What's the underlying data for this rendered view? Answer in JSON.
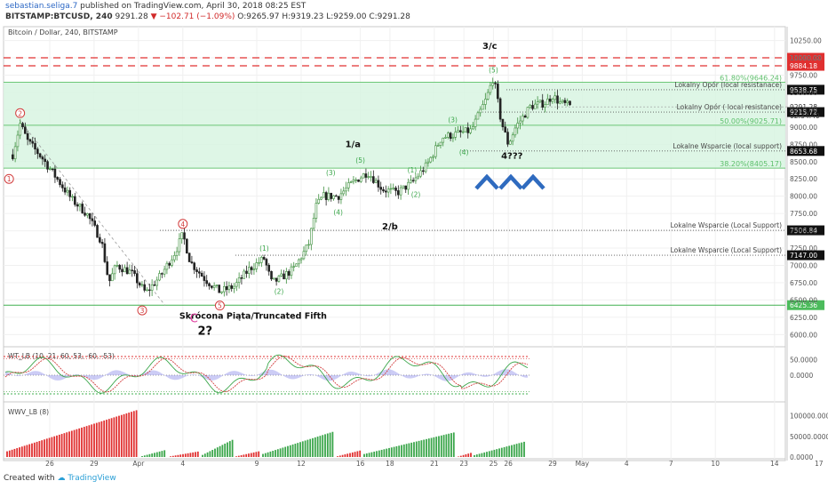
{
  "header": {
    "user": "sebastian.seliga.7",
    "published": "published on TradingView.com, April 30, 2018 08:25 EST",
    "symbol": "BITSTAMP:BTCUSD, 240",
    "last": "9291.28",
    "change": "−102.71 (−1.09%)",
    "ohlc": "O:9265.97  H:9319.23  L:9259.00  C:9291.28"
  },
  "footer": {
    "created_with": "Created with",
    "brand": "TradingView"
  },
  "chart_data": {
    "type": "candlestick",
    "title": "Bitcoin / Dollar, 240, BITSTAMP",
    "ylim": [
      5850,
      10450
    ],
    "y_ticks": [
      "10250.00",
      "10000.00",
      "9750.00",
      "9500.00",
      "9250.00",
      "9000.00",
      "8750.00",
      "8500.00",
      "8250.00",
      "8000.00",
      "7750.00",
      "7500.00",
      "7250.00",
      "7000.00",
      "6750.00",
      "6500.00",
      "6250.00",
      "6000.00"
    ],
    "x_ticks": [
      "26",
      "29",
      "Apr",
      "4",
      "9",
      "12",
      "16",
      "18",
      "21",
      "23",
      "25",
      "26",
      "29",
      "May",
      "4",
      "7",
      "10",
      "14",
      "17"
    ],
    "price_path": [
      {
        "date": "2018-03-23 12:00",
        "price": 8600
      },
      {
        "date": "2018-03-24 00:00",
        "price": 9050
      },
      {
        "date": "2018-03-24 12:00",
        "price": 8800
      },
      {
        "date": "2018-03-25 12:00",
        "price": 8550
      },
      {
        "date": "2018-03-26 12:00",
        "price": 8250
      },
      {
        "date": "2018-03-27 12:00",
        "price": 7950
      },
      {
        "date": "2018-03-28 12:00",
        "price": 7750
      },
      {
        "date": "2018-03-29 12:00",
        "price": 7350
      },
      {
        "date": "2018-03-30 00:00",
        "price": 6750
      },
      {
        "date": "2018-03-30 12:00",
        "price": 7000
      },
      {
        "date": "2018-03-31 12:00",
        "price": 6900
      },
      {
        "date": "2018-04-01 12:00",
        "price": 6600
      },
      {
        "date": "2018-04-02 12:00",
        "price": 6850
      },
      {
        "date": "2018-04-03 12:00",
        "price": 7200
      },
      {
        "date": "2018-04-04 00:00",
        "price": 7450
      },
      {
        "date": "2018-04-04 12:00",
        "price": 7050
      },
      {
        "date": "2018-04-05 12:00",
        "price": 6800
      },
      {
        "date": "2018-04-06 12:00",
        "price": 6620
      },
      {
        "date": "2018-04-07 12:00",
        "price": 6700
      },
      {
        "date": "2018-04-08 12:00",
        "price": 6950
      },
      {
        "date": "2018-04-09 12:00",
        "price": 7100
      },
      {
        "date": "2018-04-10 00:00",
        "price": 6750
      },
      {
        "date": "2018-04-10 12:00",
        "price": 6800
      },
      {
        "date": "2018-04-11 12:00",
        "price": 6950
      },
      {
        "date": "2018-04-12 12:00",
        "price": 7300
      },
      {
        "date": "2018-04-13 00:00",
        "price": 7850
      },
      {
        "date": "2018-04-13 12:00",
        "price": 8000
      },
      {
        "date": "2018-04-14 12:00",
        "price": 8000
      },
      {
        "date": "2018-04-15 12:00",
        "price": 8200
      },
      {
        "date": "2018-04-16 12:00",
        "price": 8350
      },
      {
        "date": "2018-04-17 12:00",
        "price": 8100
      },
      {
        "date": "2018-04-18 12:00",
        "price": 8050
      },
      {
        "date": "2018-04-19 12:00",
        "price": 8200
      },
      {
        "date": "2018-04-20 12:00",
        "price": 8450
      },
      {
        "date": "2018-04-21 12:00",
        "price": 8850
      },
      {
        "date": "2018-04-22 12:00",
        "price": 8900
      },
      {
        "date": "2018-04-23 12:00",
        "price": 8950
      },
      {
        "date": "2018-04-24 12:00",
        "price": 9400
      },
      {
        "date": "2018-04-25 00:00",
        "price": 9720
      },
      {
        "date": "2018-04-25 12:00",
        "price": 9100
      },
      {
        "date": "2018-04-26 00:00",
        "price": 8750
      },
      {
        "date": "2018-04-26 12:00",
        "price": 9000
      },
      {
        "date": "2018-04-27 12:00",
        "price": 9300
      },
      {
        "date": "2018-04-28 12:00",
        "price": 9350
      },
      {
        "date": "2018-04-29 00:00",
        "price": 9450
      },
      {
        "date": "2018-04-29 12:00",
        "price": 9350
      },
      {
        "date": "2018-04-30 08:00",
        "price": 9291
      }
    ],
    "levels": [
      {
        "price": 10000.0,
        "label": "",
        "tag": "10000.00",
        "style": "red-dashed"
      },
      {
        "price": 9884.18,
        "label": "",
        "tag": "9884.18",
        "style": "red-dashed"
      },
      {
        "price": 9538.75,
        "label": "Lokalny Opór (local resistanace)",
        "tag": "9538.75",
        "style": "dotted"
      },
      {
        "price": 9215.72,
        "label": "Lokalny Opór ( local resistance)",
        "tag": "9215.72",
        "style": "dotted"
      },
      {
        "price": 8653.68,
        "label": "Lokalne Wsparcie (local support)",
        "tag": "8653.68",
        "style": "dotted"
      },
      {
        "price": 7506.84,
        "label": "Lokalne Wsparcie (Local Support)",
        "tag": "7506.84",
        "style": "dotted"
      },
      {
        "price": 7147.0,
        "label": "Lokalne Wsparcie (Local Support)",
        "tag": "7147.00",
        "style": "dotted"
      },
      {
        "price": 6425.36,
        "label": "",
        "tag": "6425.36",
        "style": "green-solid"
      }
    ],
    "fib_levels": [
      {
        "price": 9646.24,
        "label": "61.80%(9646.24)"
      },
      {
        "price": 9025.71,
        "label": "50.00%(9025.71)"
      },
      {
        "price": 8405.17,
        "label": "38.20%(8405.17)"
      }
    ],
    "last_price_tag": "9291.28",
    "countdown_tag": "02:34:40",
    "waves": [
      {
        "label": "1",
        "date": "2018-03-23 06:00",
        "price": 8250,
        "color": "red"
      },
      {
        "label": "2",
        "date": "2018-03-24 00:00",
        "price": 9200,
        "color": "red"
      },
      {
        "label": "3",
        "date": "2018-04-01 06:00",
        "price": 6350,
        "color": "red"
      },
      {
        "label": "4",
        "date": "2018-04-04 00:00",
        "price": 7600,
        "color": "red"
      },
      {
        "label": "5",
        "date": "2018-04-06 12:00",
        "price": 6420,
        "color": "red"
      },
      {
        "label": "(1)",
        "date": "2018-04-09 12:00",
        "price": 7250,
        "color": "green"
      },
      {
        "label": "(2)",
        "date": "2018-04-10 12:00",
        "price": 6630,
        "color": "green"
      },
      {
        "label": "(3)",
        "date": "2018-04-14 00:00",
        "price": 8340,
        "color": "green"
      },
      {
        "label": "(4)",
        "date": "2018-04-14 12:00",
        "price": 7770,
        "color": "green"
      },
      {
        "label": "(5)",
        "date": "2018-04-16 00:00",
        "price": 8520,
        "color": "green"
      },
      {
        "label": "(1)",
        "date": "2018-04-19 12:00",
        "price": 8380,
        "color": "green"
      },
      {
        "label": "(2)",
        "date": "2018-04-19 18:00",
        "price": 8030,
        "color": "green"
      },
      {
        "label": "(3)",
        "date": "2018-04-22 06:00",
        "price": 9110,
        "color": "green"
      },
      {
        "label": "(4)",
        "date": "2018-04-23 00:00",
        "price": 8640,
        "color": "green"
      },
      {
        "label": "(5)",
        "date": "2018-04-25 00:00",
        "price": 9830,
        "color": "green"
      }
    ],
    "annotations": [
      {
        "text": "1/a",
        "date": "2018-04-15 12:00",
        "price": 8710
      },
      {
        "text": "2/b",
        "date": "2018-04-18 00:00",
        "price": 7520
      },
      {
        "text": "3/c",
        "date": "2018-04-24 18:00",
        "price": 10130
      },
      {
        "text": "4???",
        "date": "2018-04-26 06:00",
        "price": 8540
      },
      {
        "text": "Skrócona Piąta/Truncated Fifth",
        "date": "2018-04-08 18:00",
        "price": 6230
      },
      {
        "text": "2?",
        "date": "2018-04-05 12:00",
        "price": 6000
      },
      {
        "text": "C",
        "date": "2018-04-04 18:00",
        "price": 6180
      }
    ],
    "indicators": [
      {
        "name": "WT_LB (10, 21, 60, 53, -60, -53)",
        "y_ticks": [
          "50.0000",
          "0.0000"
        ],
        "ylim": [
          -80,
          80
        ],
        "overbought": 60,
        "oversold": -60
      },
      {
        "name": "WWV_LB (8)",
        "y_ticks": [
          "100000.0000",
          "50000.0000",
          "0.0000"
        ],
        "ylim": [
          0,
          125000
        ]
      }
    ],
    "grid": true
  }
}
